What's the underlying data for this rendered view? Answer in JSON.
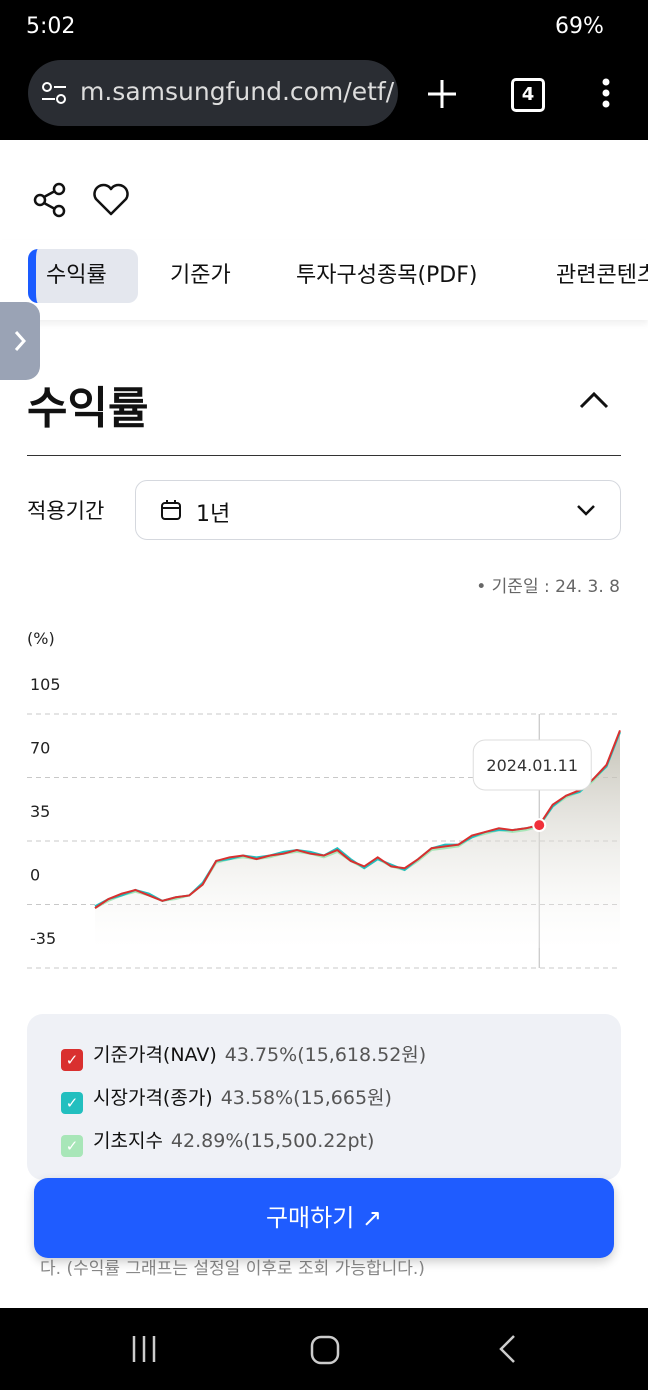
{
  "status_bar": {
    "time": "5:02",
    "battery": "69%"
  },
  "browser": {
    "url": "m.samsungfund.com/etf/",
    "tab_count": "4"
  },
  "tabs": [
    "수익률",
    "기준가",
    "투자구성종목(PDF)",
    "관련콘텐츠"
  ],
  "section_title": "수익률",
  "period": {
    "label": "적용기간",
    "value": "1년"
  },
  "reference_date": "• 기준일 : 24. 3. 8",
  "chart_data": {
    "type": "line",
    "y_unit": "(%)",
    "ylim": [
      -35,
      105
    ],
    "yticks": [
      105,
      70,
      35,
      0,
      -35
    ],
    "grid": true,
    "categories": [
      null,
      null,
      null,
      null,
      null,
      null,
      null,
      null,
      null,
      null,
      null,
      null,
      null,
      null,
      null,
      null,
      null,
      null,
      null,
      null,
      null,
      null,
      null,
      null,
      null,
      null,
      null,
      null,
      null,
      null,
      null,
      null,
      null,
      "2024.01.11",
      null,
      null,
      null,
      null,
      null,
      null
    ],
    "series": [
      {
        "name": "기준가격(NAV)",
        "color": "#d9302f",
        "legend_value": "43.75%(15,618.52원)",
        "values": [
          -2,
          3,
          6,
          8,
          5,
          2,
          4,
          5,
          11,
          24,
          26,
          27,
          25,
          27,
          28,
          30,
          28,
          27,
          30,
          24,
          21,
          26,
          21,
          20,
          25,
          31,
          32,
          33,
          38,
          40,
          42,
          41,
          42,
          43.75,
          55,
          60,
          63,
          69,
          77,
          96
        ]
      },
      {
        "name": "시장가격(종가)",
        "color": "#22bfbf",
        "legend_value": "43.58%(15,665원)",
        "values": [
          -1,
          3,
          5,
          8,
          6,
          2,
          4,
          5,
          12,
          24,
          25,
          27,
          26,
          27,
          29,
          30,
          29,
          27,
          31,
          25,
          20,
          25,
          22,
          19,
          25,
          31,
          33,
          33,
          37,
          40,
          41,
          41,
          42,
          43.58,
          54,
          60,
          62,
          69,
          76,
          95
        ]
      },
      {
        "name": "기초지수",
        "color": "#a8e6b8",
        "legend_value": "42.89%(15,500.22pt)",
        "values": [
          -2,
          2,
          5,
          7,
          5,
          2,
          3,
          5,
          11,
          23,
          25,
          26,
          25,
          26,
          28,
          29,
          28,
          26,
          29,
          24,
          20,
          25,
          21,
          19,
          24,
          30,
          31,
          32,
          37,
          39,
          41,
          40,
          41,
          42.89,
          54,
          59,
          62,
          68,
          76,
          95
        ]
      }
    ]
  },
  "note": "수익률 그래프는 상품 유형에 상관없이 분배금 재투자를 가정한 수익률 기준입니다. (수익률 그래프는 설정일 이후로 조회 가능합니다.)",
  "buy_button": "구매하기 ↗"
}
